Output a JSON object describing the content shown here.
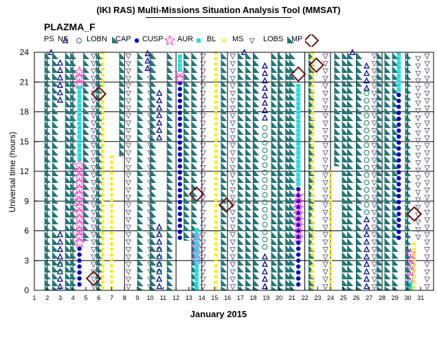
{
  "title": "(IKI RAS) Multi-Missions Situation Analysis Tool (MMSAT)",
  "subtitle": "PLAZMA_F",
  "legend": [
    {
      "label": "PS",
      "icon": "triangle-up"
    },
    {
      "label": "NS",
      "icon": "circle-open"
    },
    {
      "label": "LOBN",
      "icon": "wedge"
    },
    {
      "label": "CAP",
      "icon": "dot"
    },
    {
      "label": "CUSP",
      "icon": "star"
    },
    {
      "label": "AUR",
      "icon": "square"
    },
    {
      "label": "BL",
      "icon": "small-dot"
    },
    {
      "label": "MS",
      "icon": "triangle-down"
    },
    {
      "label": "LOBS",
      "icon": "wedge"
    },
    {
      "label": "MP",
      "icon": "diamond"
    }
  ],
  "colors": {
    "PS": "#000099",
    "NS": "#117755",
    "LOBN": "#227777",
    "CAP": "#0000cc",
    "CUSP": "#ff33cc",
    "AUR": "#22dddd",
    "BL": "#ffee00",
    "MS": "#776688",
    "LOBS": "#227777",
    "MP": "#661111"
  },
  "chart_data": {
    "type": "scatter",
    "title": "(IKI RAS) Multi-Missions Situation Analysis Tool (MMSAT)",
    "subtitle": "PLAZMA_F",
    "xlabel": "January 2015",
    "ylabel": "Universal time (hours)",
    "xlim": [
      1,
      32
    ],
    "ylim": [
      0,
      24
    ],
    "x_ticks": [
      1,
      2,
      3,
      4,
      5,
      6,
      7,
      8,
      9,
      10,
      11,
      12,
      13,
      14,
      15,
      16,
      17,
      18,
      19,
      20,
      21,
      22,
      23,
      24,
      25,
      26,
      27,
      28,
      29,
      30,
      31
    ],
    "y_ticks": [
      0,
      3,
      6,
      9,
      12,
      15,
      18,
      21,
      24
    ],
    "grid": true,
    "series": [
      {
        "name": "PS",
        "intervals": [
          [
            2.3,
            23.6,
            24
          ],
          [
            3.0,
            0,
            6
          ],
          [
            3.0,
            18.8,
            23
          ],
          [
            9.8,
            22,
            24
          ],
          [
            10.7,
            15,
            20.5
          ],
          [
            10.7,
            0,
            6.5
          ],
          [
            17.3,
            23.6,
            24
          ],
          [
            18.9,
            0,
            3.6
          ],
          [
            18.9,
            17,
            23
          ],
          [
            25.7,
            23.6,
            24
          ],
          [
            26.8,
            0,
            7.5
          ],
          [
            26.8,
            20,
            23.3
          ]
        ]
      },
      {
        "name": "NS",
        "intervals": [
          [
            3.0,
            1.5,
            3
          ],
          [
            10.7,
            1.5,
            4.3
          ],
          [
            18.9,
            4,
            16.5
          ],
          [
            26.8,
            7.5,
            20
          ]
        ]
      },
      {
        "name": "LOBN",
        "intervals": [
          [
            2.0,
            0,
            24
          ],
          [
            3.6,
            0,
            24
          ],
          [
            5.0,
            5,
            24
          ],
          [
            7.8,
            13.5,
            24
          ],
          [
            9.2,
            0,
            24
          ],
          [
            11.5,
            0,
            24
          ],
          [
            12.8,
            5,
            24
          ],
          [
            13.4,
            0,
            24
          ],
          [
            15.7,
            0,
            24
          ],
          [
            17.0,
            0,
            24
          ],
          [
            18.2,
            0,
            24
          ],
          [
            20.1,
            0,
            24
          ],
          [
            20.7,
            0,
            24
          ],
          [
            22.5,
            0,
            24
          ],
          [
            24.5,
            12.5,
            24
          ],
          [
            25.1,
            0,
            24
          ],
          [
            26.2,
            0,
            24
          ],
          [
            28.4,
            0,
            24
          ],
          [
            29.0,
            0,
            24
          ]
        ]
      },
      {
        "name": "CAP",
        "intervals": [
          [
            4.5,
            0.3,
            4.5
          ],
          [
            12.3,
            5,
            21
          ],
          [
            21.5,
            0.3,
            10.5
          ],
          [
            29.3,
            5,
            20
          ]
        ]
      },
      {
        "name": "CUSP",
        "intervals": [
          [
            4.5,
            4.5,
            13
          ],
          [
            4.5,
            20.5,
            22.5
          ],
          [
            12.3,
            21,
            22
          ],
          [
            13.6,
            2.8,
            6
          ],
          [
            21.5,
            5,
            10
          ],
          [
            30.2,
            1,
            4
          ]
        ]
      },
      {
        "name": "AUR",
        "intervals": [
          [
            4.5,
            13,
            20.5
          ],
          [
            12.3,
            22,
            24
          ],
          [
            13.6,
            0,
            6.5
          ],
          [
            21.5,
            10.5,
            21
          ],
          [
            29.3,
            20,
            24
          ],
          [
            30.2,
            0,
            1
          ]
        ]
      },
      {
        "name": "BL",
        "intervals": [
          [
            6.3,
            0,
            24
          ],
          [
            7.0,
            0,
            13.5
          ],
          [
            15.1,
            0,
            24
          ],
          [
            22.6,
            0,
            24
          ],
          [
            24.0,
            0,
            12.3
          ],
          [
            30.5,
            0,
            5
          ]
        ]
      },
      {
        "name": "MS",
        "intervals": [
          [
            5.6,
            0,
            24
          ],
          [
            8.3,
            0,
            24
          ],
          [
            10.0,
            0,
            24
          ],
          [
            14.1,
            0,
            24
          ],
          [
            16.4,
            0,
            24
          ],
          [
            23.6,
            0,
            24
          ],
          [
            27.4,
            0,
            24
          ],
          [
            30.8,
            5,
            24
          ],
          [
            31.5,
            0,
            24
          ]
        ]
      },
      {
        "name": "LOBS",
        "intervals": [
          [
            2.6,
            0,
            24
          ],
          [
            4.0,
            0,
            24
          ],
          [
            6.0,
            0,
            24
          ],
          [
            10.2,
            0,
            24
          ],
          [
            17.6,
            0,
            24
          ],
          [
            19.6,
            0,
            24
          ],
          [
            21.0,
            0,
            24
          ],
          [
            25.5,
            0,
            24
          ],
          [
            27.8,
            0,
            24
          ],
          [
            30.0,
            0,
            24
          ]
        ]
      },
      {
        "name": "MP",
        "points": [
          [
            5.6,
            1.2
          ],
          [
            6.0,
            19.8
          ],
          [
            13.6,
            9.7
          ],
          [
            15.9,
            8.6
          ],
          [
            21.5,
            21.8
          ],
          [
            22.9,
            22.7
          ],
          [
            30.5,
            7.7
          ]
        ]
      }
    ]
  }
}
